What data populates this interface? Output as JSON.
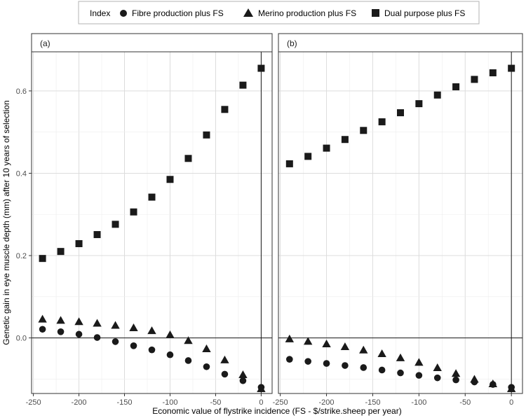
{
  "chart_data": {
    "type": "scatter",
    "xlabel": "Economic value of flystrike incidence (FS - $/strike.sheep per year)",
    "ylabel": "Genetic gain in eye muscle depth (mm) after 10 years of selection",
    "xlim": [
      -252,
      12
    ],
    "ylim": [
      -0.135,
      0.695
    ],
    "x_ticks": [
      -250,
      -200,
      -150,
      -100,
      -50,
      0
    ],
    "y_ticks": [
      0.0,
      0.2,
      0.4,
      0.6
    ],
    "x_tick_labels": [
      "-250",
      "-200",
      "-150",
      "-100",
      "-50",
      "0"
    ],
    "y_tick_labels": [
      "0.0",
      "0.2",
      "0.4",
      "0.6"
    ],
    "reference_lines": {
      "x": 0,
      "y": 0
    },
    "legend": {
      "title": "Index",
      "position": "top",
      "entries": [
        {
          "name": "Fibre production plus FS",
          "marker": "circle"
        },
        {
          "name": "Merino production plus FS",
          "marker": "triangle"
        },
        {
          "name": "Dual purpose plus FS",
          "marker": "square"
        }
      ]
    },
    "panels": [
      {
        "label": "(a)",
        "x": [
          -240,
          -220,
          -200,
          -180,
          -160,
          -140,
          -120,
          -100,
          -80,
          -60,
          -40,
          -20,
          0
        ],
        "series": [
          {
            "name": "Fibre production plus FS",
            "marker": "circle",
            "values": [
              0.021,
              0.015,
              0.009,
              0.001,
              -0.009,
              -0.019,
              -0.029,
              -0.041,
              -0.055,
              -0.07,
              -0.088,
              -0.104,
              -0.12
            ]
          },
          {
            "name": "Merino production plus FS",
            "marker": "triangle",
            "values": [
              0.045,
              0.042,
              0.039,
              0.035,
              0.03,
              0.024,
              0.017,
              0.007,
              -0.007,
              -0.027,
              -0.054,
              -0.09,
              -0.124
            ]
          },
          {
            "name": "Dual purpose plus FS",
            "marker": "square",
            "values": [
              0.193,
              0.21,
              0.229,
              0.251,
              0.276,
              0.306,
              0.342,
              0.385,
              0.436,
              0.493,
              0.555,
              0.614,
              0.655
            ]
          }
        ]
      },
      {
        "label": "(b)",
        "x": [
          -240,
          -220,
          -200,
          -180,
          -160,
          -140,
          -120,
          -100,
          -80,
          -60,
          -40,
          -20,
          0
        ],
        "series": [
          {
            "name": "Fibre production plus FS",
            "marker": "circle",
            "values": [
              -0.052,
              -0.057,
              -0.062,
              -0.067,
              -0.072,
              -0.078,
              -0.085,
              -0.091,
              -0.097,
              -0.102,
              -0.107,
              -0.113,
              -0.12
            ]
          },
          {
            "name": "Merino production plus FS",
            "marker": "triangle",
            "values": [
              -0.003,
              -0.009,
              -0.015,
              -0.022,
              -0.03,
              -0.039,
              -0.049,
              -0.06,
              -0.073,
              -0.087,
              -0.101,
              -0.112,
              -0.124
            ]
          },
          {
            "name": "Dual purpose plus FS",
            "marker": "square",
            "values": [
              0.423,
              0.441,
              0.461,
              0.482,
              0.504,
              0.525,
              0.547,
              0.569,
              0.59,
              0.61,
              0.628,
              0.644,
              0.655
            ]
          }
        ]
      }
    ]
  }
}
